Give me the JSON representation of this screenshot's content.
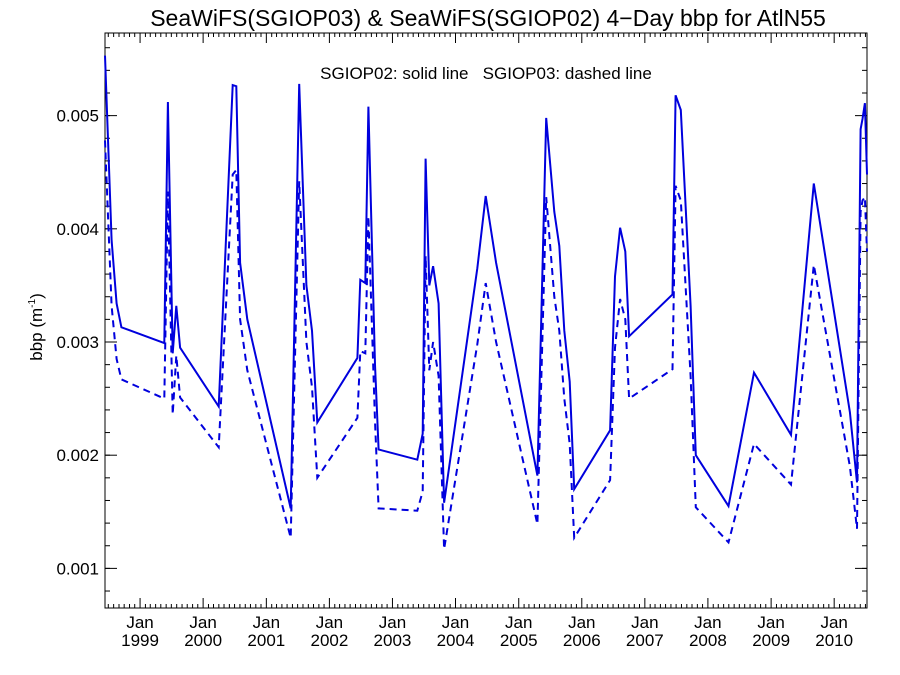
{
  "chart_data": {
    "type": "line",
    "title": "SeaWiFS(SGIOP03) & SeaWiFS(SGIOP02) 4−Day bbp for AtlN55",
    "annotation": "SGIOP02: solid line   SGIOP03: dashed line",
    "ylabel": "bbp (m",
    "ylabel_superscript": "-1",
    "ylabel_close": ")",
    "ylim": [
      0.00065,
      0.00573
    ],
    "xlim": [
      "1998-06-12",
      "2010-07-10"
    ],
    "yticks": [
      {
        "value": 0.001,
        "label": "0.001"
      },
      {
        "value": 0.002,
        "label": "0.002"
      },
      {
        "value": 0.003,
        "label": "0.003"
      },
      {
        "value": 0.004,
        "label": "0.004"
      },
      {
        "value": 0.005,
        "label": "0.005"
      }
    ],
    "xticks": [
      {
        "date": "1999-01-01",
        "month": "Jan",
        "year": "1999"
      },
      {
        "date": "2000-01-01",
        "month": "Jan",
        "year": "2000"
      },
      {
        "date": "2001-01-01",
        "month": "Jan",
        "year": "2001"
      },
      {
        "date": "2002-01-01",
        "month": "Jan",
        "year": "2002"
      },
      {
        "date": "2003-01-01",
        "month": "Jan",
        "year": "2003"
      },
      {
        "date": "2004-01-01",
        "month": "Jan",
        "year": "2004"
      },
      {
        "date": "2005-01-01",
        "month": "Jan",
        "year": "2005"
      },
      {
        "date": "2006-01-01",
        "month": "Jan",
        "year": "2006"
      },
      {
        "date": "2007-01-01",
        "month": "Jan",
        "year": "2007"
      },
      {
        "date": "2008-01-01",
        "month": "Jan",
        "year": "2008"
      },
      {
        "date": "2009-01-01",
        "month": "Jan",
        "year": "2009"
      },
      {
        "date": "2010-01-01",
        "month": "Jan",
        "year": "2010"
      }
    ],
    "series": [
      {
        "name": "SGIOP02",
        "style": "solid",
        "color": "#0000dd",
        "points": [
          [
            "1998-06-12",
            0.00553
          ],
          [
            "1998-07-20",
            0.0039
          ],
          [
            "1998-08-18",
            0.00334
          ],
          [
            "1998-09-15",
            0.00313
          ],
          [
            "1999-05-21",
            0.00299
          ],
          [
            "1999-06-11",
            0.00512
          ],
          [
            "1999-07-09",
            0.0029
          ],
          [
            "1999-07-30",
            0.00332
          ],
          [
            "1999-08-21",
            0.00295
          ],
          [
            "2000-03-31",
            0.00243
          ],
          [
            "2000-06-20",
            0.00527
          ],
          [
            "2000-07-11",
            0.00526
          ],
          [
            "2000-08-02",
            0.0037
          ],
          [
            "2000-09-13",
            0.0032
          ],
          [
            "2001-05-22",
            0.00153
          ],
          [
            "2001-07-10",
            0.00528
          ],
          [
            "2001-08-21",
            0.0035
          ],
          [
            "2001-09-22",
            0.0031
          ],
          [
            "2001-10-23",
            0.00229
          ],
          [
            "2002-06-12",
            0.00286
          ],
          [
            "2002-06-29",
            0.00355
          ],
          [
            "2002-07-28",
            0.00352
          ],
          [
            "2002-08-15",
            0.00508
          ],
          [
            "2002-09-22",
            0.0028
          ],
          [
            "2002-10-13",
            0.00205
          ],
          [
            "2003-05-25",
            0.00196
          ],
          [
            "2003-06-25",
            0.00219
          ],
          [
            "2003-07-12",
            0.00462
          ],
          [
            "2003-08-02",
            0.0035
          ],
          [
            "2003-08-24",
            0.00367
          ],
          [
            "2003-09-25",
            0.00334
          ],
          [
            "2003-10-27",
            0.00158
          ],
          [
            "2004-05-06",
            0.00365
          ],
          [
            "2004-06-24",
            0.00429
          ],
          [
            "2004-08-23",
            0.0037
          ],
          [
            "2005-04-19",
            0.00182
          ],
          [
            "2005-06-09",
            0.00498
          ],
          [
            "2005-07-26",
            0.00415
          ],
          [
            "2005-08-24",
            0.00385
          ],
          [
            "2005-09-22",
            0.0031
          ],
          [
            "2005-10-23",
            0.00265
          ],
          [
            "2005-11-18",
            0.0017
          ],
          [
            "2006-06-14",
            0.00222
          ],
          [
            "2006-07-12",
            0.00358
          ],
          [
            "2006-08-11",
            0.00401
          ],
          [
            "2006-09-10",
            0.0038
          ],
          [
            "2006-10-02",
            0.00305
          ],
          [
            "2007-06-10",
            0.00342
          ],
          [
            "2007-06-28",
            0.00518
          ],
          [
            "2007-07-28",
            0.00505
          ],
          [
            "2007-09-23",
            0.00332
          ],
          [
            "2007-10-23",
            0.002
          ],
          [
            "2008-04-29",
            0.00155
          ],
          [
            "2008-09-24",
            0.00273
          ],
          [
            "2009-04-26",
            0.00218
          ],
          [
            "2009-09-05",
            0.0044
          ],
          [
            "2010-04-02",
            0.00238
          ],
          [
            "2010-05-13",
            0.00176
          ],
          [
            "2010-06-03",
            0.00488
          ],
          [
            "2010-06-14",
            0.00497
          ],
          [
            "2010-06-28",
            0.00511
          ],
          [
            "2010-07-10",
            0.00448
          ]
        ]
      },
      {
        "name": "SGIOP03",
        "style": "dashed",
        "color": "#0000dd",
        "points": [
          [
            "1998-06-12",
            0.00478
          ],
          [
            "1998-07-20",
            0.00332
          ],
          [
            "1998-08-18",
            0.00285
          ],
          [
            "1998-09-15",
            0.00267
          ],
          [
            "1999-05-21",
            0.0025
          ],
          [
            "1999-06-11",
            0.00433
          ],
          [
            "1999-07-09",
            0.00236
          ],
          [
            "1999-07-30",
            0.00288
          ],
          [
            "1999-08-21",
            0.00251
          ],
          [
            "2000-03-31",
            0.00207
          ],
          [
            "2000-06-20",
            0.00448
          ],
          [
            "2000-07-11",
            0.00452
          ],
          [
            "2000-08-02",
            0.0032
          ],
          [
            "2000-09-13",
            0.00275
          ],
          [
            "2001-05-22",
            0.00127
          ],
          [
            "2001-07-10",
            0.00442
          ],
          [
            "2001-08-21",
            0.003
          ],
          [
            "2001-09-22",
            0.0026
          ],
          [
            "2001-10-23",
            0.0018
          ],
          [
            "2002-06-12",
            0.00233
          ],
          [
            "2002-06-29",
            0.00292
          ],
          [
            "2002-07-28",
            0.0029
          ],
          [
            "2002-08-15",
            0.00411
          ],
          [
            "2002-09-22",
            0.0023
          ],
          [
            "2002-10-13",
            0.00153
          ],
          [
            "2003-05-25",
            0.00151
          ],
          [
            "2003-06-25",
            0.00168
          ],
          [
            "2003-07-12",
            0.00376
          ],
          [
            "2003-08-02",
            0.00275
          ],
          [
            "2003-08-24",
            0.003
          ],
          [
            "2003-09-25",
            0.0027
          ],
          [
            "2003-10-27",
            0.00117
          ],
          [
            "2004-05-06",
            0.00298
          ],
          [
            "2004-06-24",
            0.00352
          ],
          [
            "2004-08-23",
            0.003
          ],
          [
            "2005-04-19",
            0.00139
          ],
          [
            "2005-06-09",
            0.00428
          ],
          [
            "2005-07-26",
            0.0034
          ],
          [
            "2005-08-24",
            0.0031
          ],
          [
            "2005-09-22",
            0.0025
          ],
          [
            "2005-10-23",
            0.0021
          ],
          [
            "2005-11-18",
            0.00127
          ],
          [
            "2006-06-14",
            0.00178
          ],
          [
            "2006-07-12",
            0.00295
          ],
          [
            "2006-08-11",
            0.00338
          ],
          [
            "2006-09-10",
            0.0032
          ],
          [
            "2006-10-02",
            0.0025
          ],
          [
            "2007-06-10",
            0.00276
          ],
          [
            "2007-06-28",
            0.00438
          ],
          [
            "2007-07-28",
            0.00425
          ],
          [
            "2007-09-23",
            0.0027
          ],
          [
            "2007-10-23",
            0.00154
          ],
          [
            "2008-04-29",
            0.00123
          ],
          [
            "2008-09-24",
            0.0021
          ],
          [
            "2009-04-26",
            0.00174
          ],
          [
            "2009-09-05",
            0.00368
          ],
          [
            "2010-04-02",
            0.0019
          ],
          [
            "2010-05-13",
            0.00135
          ],
          [
            "2010-06-03",
            0.00415
          ],
          [
            "2010-06-14",
            0.00425
          ],
          [
            "2010-06-28",
            0.00428
          ],
          [
            "2010-07-10",
            0.0038
          ]
        ]
      }
    ]
  }
}
